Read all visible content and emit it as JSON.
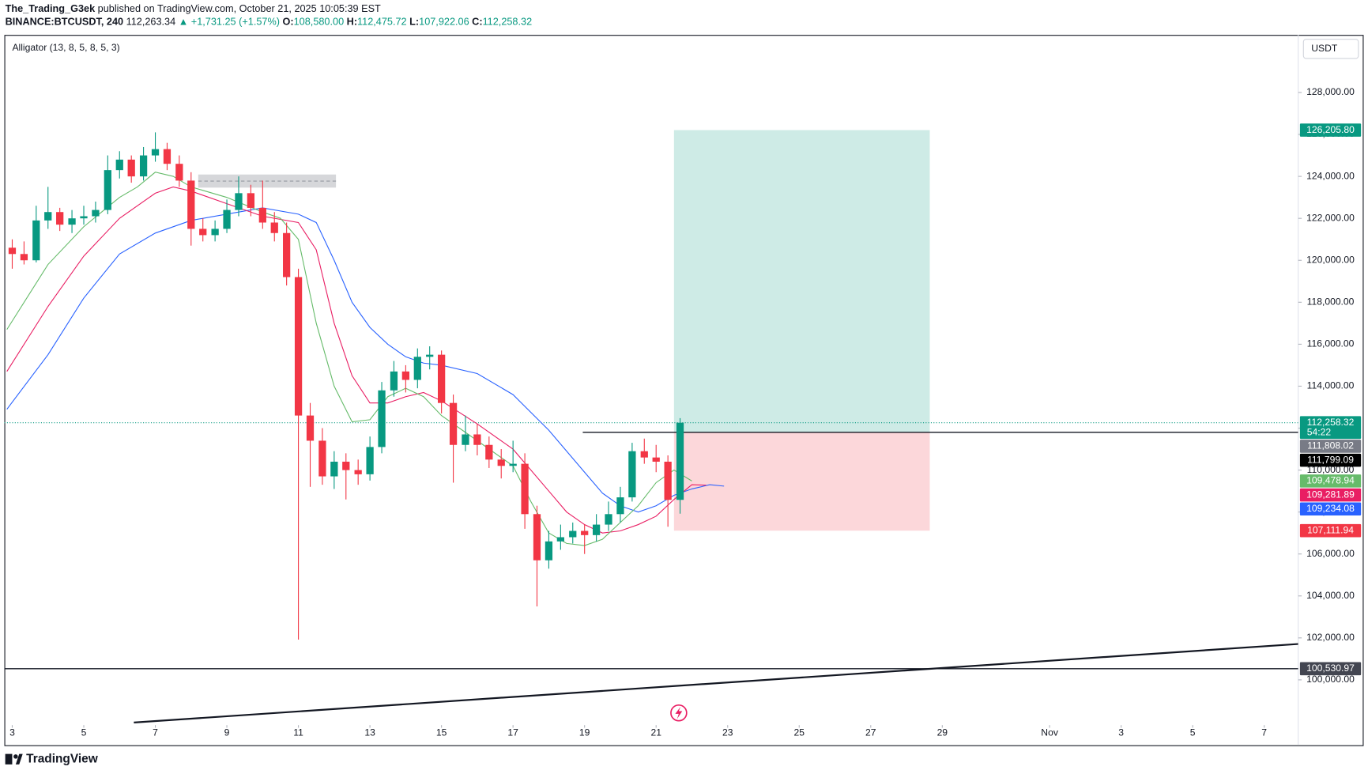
{
  "header": {
    "author": "The_Trading_G3ek",
    "published": "published on TradingView.com, October 21, 2025 10:05:39 EST",
    "symbol": "BINANCE:BTCUSDT, 240",
    "price": "112,263.34",
    "change": "▲ +1,731.25 (+1.57%)",
    "o_label": "O:",
    "o": "108,580.00",
    "h_label": "H:",
    "h": "112,475.72",
    "l_label": "L:",
    "l": "107,922.06",
    "c_label": "C:",
    "c": "112,258.32"
  },
  "footer": {
    "brand": "TradingView"
  },
  "chart_data": {
    "type": "candlestick",
    "indicator": "Alligator (13, 8, 5, 8, 5, 3)",
    "currency": "USDT",
    "up_color": "#089981",
    "down_color": "#f23645",
    "x": [
      3,
      3.33,
      3.67,
      4,
      4.33,
      4.67,
      5,
      5.33,
      5.67,
      6,
      6.33,
      6.67,
      7,
      7.33,
      7.67,
      8,
      8.33,
      8.67,
      9,
      9.33,
      9.67,
      10,
      10.33,
      10.67,
      11,
      11.33,
      11.67,
      12,
      12.33,
      12.67,
      13,
      13.33,
      13.67,
      14,
      14.33,
      14.67,
      15,
      15.33,
      15.67,
      16,
      16.33,
      16.67,
      17,
      17.33,
      17.67,
      18,
      18.33,
      18.67,
      19,
      19.33,
      19.67,
      20,
      20.33,
      20.67,
      21,
      21.33,
      21.67
    ],
    "candles": [
      [
        120600,
        121000,
        119600,
        120300
      ],
      [
        120300,
        120900,
        119800,
        120000
      ],
      [
        120000,
        122600,
        119900,
        121900
      ],
      [
        121900,
        123500,
        121500,
        122300
      ],
      [
        122300,
        122500,
        121400,
        121700
      ],
      [
        121700,
        122400,
        121300,
        122000
      ],
      [
        122000,
        122600,
        121700,
        122100
      ],
      [
        122100,
        122800,
        121800,
        122400
      ],
      [
        122400,
        125000,
        122200,
        124300
      ],
      [
        124300,
        125200,
        123900,
        124800
      ],
      [
        124800,
        125000,
        123700,
        124000
      ],
      [
        124000,
        125400,
        123800,
        125000
      ],
      [
        125000,
        126100,
        124700,
        125300
      ],
      [
        125300,
        125600,
        124300,
        124600
      ],
      [
        124600,
        125000,
        123500,
        123800
      ],
      [
        123800,
        124200,
        120700,
        121500
      ],
      [
        121500,
        122000,
        120900,
        121200
      ],
      [
        121200,
        121900,
        120900,
        121500
      ],
      [
        121500,
        122900,
        121300,
        122400
      ],
      [
        122400,
        124000,
        122100,
        123200
      ],
      [
        123200,
        123600,
        122100,
        122500
      ],
      [
        122500,
        123800,
        121500,
        121800
      ],
      [
        121800,
        122300,
        120900,
        121300
      ],
      [
        121300,
        121800,
        118800,
        119200
      ],
      [
        119200,
        119600,
        101920,
        112600
      ],
      [
        112600,
        113200,
        109200,
        111400
      ],
      [
        111400,
        112000,
        109300,
        109700
      ],
      [
        109700,
        110900,
        109100,
        110400
      ],
      [
        110400,
        110800,
        108600,
        110000
      ],
      [
        110000,
        110500,
        109300,
        109800
      ],
      [
        109800,
        111600,
        109500,
        111100
      ],
      [
        111100,
        114200,
        110800,
        113800
      ],
      [
        113800,
        115200,
        113500,
        114700
      ],
      [
        114700,
        115000,
        113700,
        114300
      ],
      [
        114300,
        115800,
        113900,
        115400
      ],
      [
        115400,
        115900,
        114800,
        115500
      ],
      [
        115500,
        115700,
        112700,
        113200
      ],
      [
        113200,
        113600,
        109400,
        111200
      ],
      [
        111200,
        112600,
        110900,
        111700
      ],
      [
        111700,
        112200,
        110700,
        111200
      ],
      [
        111200,
        111600,
        110100,
        110500
      ],
      [
        110500,
        111000,
        109600,
        110200
      ],
      [
        110200,
        111400,
        109900,
        110300
      ],
      [
        110300,
        110800,
        107200,
        107900
      ],
      [
        107900,
        108300,
        103500,
        105700
      ],
      [
        105700,
        107100,
        105300,
        106600
      ],
      [
        106600,
        107400,
        106200,
        106800
      ],
      [
        106800,
        107500,
        106500,
        107100
      ],
      [
        107100,
        107400,
        106000,
        106900
      ],
      [
        106900,
        107900,
        106600,
        107400
      ],
      [
        107400,
        108500,
        107100,
        107900
      ],
      [
        107900,
        109200,
        107500,
        108700
      ],
      [
        108700,
        111300,
        108500,
        110900
      ],
      [
        110900,
        111500,
        110300,
        110600
      ],
      [
        110600,
        111200,
        109900,
        110400
      ],
      [
        110400,
        110700,
        107300,
        108580
      ],
      [
        108580,
        112475.72,
        107922.06,
        112258.32
      ]
    ],
    "series": [
      {
        "color": "#2962ff",
        "last_label": "109,234.08",
        "x": [
          2.85,
          4,
          5,
          6,
          7,
          8,
          9,
          10,
          11,
          11.5,
          12,
          12.5,
          13,
          13.5,
          14,
          14.5,
          15,
          16,
          17,
          18,
          19,
          19.5,
          20,
          20.5,
          21,
          21.5,
          22,
          22.5,
          22.9
        ],
        "values": [
          112900,
          115500,
          118200,
          120300,
          121300,
          121900,
          122200,
          122500,
          122200,
          121800,
          120000,
          118000,
          116800,
          116000,
          115400,
          115100,
          115000,
          114600,
          113600,
          111900,
          109900,
          108900,
          108300,
          108000,
          108300,
          108800,
          109100,
          109300,
          109234.08
        ]
      },
      {
        "color": "#e91e63",
        "last_label": "109,281.89",
        "x": [
          2.85,
          4,
          5,
          6,
          7,
          7.5,
          8,
          9,
          10,
          11,
          11.5,
          12,
          12.5,
          13,
          13.5,
          14,
          14.5,
          15,
          16,
          17,
          18,
          18.5,
          19,
          19.5,
          20,
          20.5,
          21,
          21.5,
          22,
          22.4
        ],
        "values": [
          114700,
          117800,
          120200,
          122000,
          123200,
          123500,
          123300,
          122700,
          122100,
          121800,
          120500,
          117000,
          114500,
          113200,
          113200,
          113500,
          113700,
          113300,
          112200,
          111000,
          109000,
          108000,
          107400,
          107000,
          107100,
          107400,
          107800,
          108600,
          109300,
          109281.89
        ]
      },
      {
        "color": "#66bb6a",
        "last_label": "109,478.94",
        "x": [
          2.85,
          4,
          5,
          6,
          6.5,
          7,
          7.5,
          8,
          9,
          10,
          10.5,
          11,
          11.5,
          12,
          12.5,
          13,
          13.5,
          14,
          14.5,
          15,
          16,
          17,
          17.5,
          18,
          18.5,
          19,
          19.5,
          20,
          20.5,
          21,
          21.5,
          22
        ],
        "values": [
          116700,
          119800,
          121600,
          123000,
          123500,
          124200,
          124000,
          123500,
          123000,
          122300,
          122000,
          121000,
          117000,
          114000,
          112300,
          112400,
          113500,
          113900,
          113500,
          112600,
          111400,
          110200,
          108500,
          107000,
          106500,
          106400,
          106700,
          107500,
          108300,
          109400,
          110000,
          109478.94
        ]
      }
    ],
    "position": {
      "entry": 111799.09,
      "entry_label": "111,799.09",
      "target": 126205.8,
      "target_label": "126,205.80",
      "stop": 107111.94,
      "stop_label": "107,111.94",
      "x": [
        21.5,
        28.65
      ],
      "entry_line_x": [
        18.95,
        38.95
      ]
    },
    "zone": {
      "x": [
        8.2,
        12.05
      ],
      "y": [
        123465,
        124090
      ]
    },
    "trendline": {
      "x": [
        6.4,
        38.95
      ],
      "values": [
        97966,
        101710
      ]
    },
    "price_labels": [
      {
        "value": 112258.32,
        "label": "112,258.32",
        "sub": "54:22",
        "color": "#089981",
        "line": "dotted"
      },
      {
        "value": 111808.02,
        "label": "111,808.02",
        "color": "#787b86",
        "line": "none"
      },
      {
        "value": 100530.97,
        "label": "100,530.97",
        "color": "#434651",
        "line": "solid"
      }
    ],
    "xlim": [
      2.78,
      38.95
    ],
    "ylim": [
      97966,
      130745
    ],
    "xticks": [
      3,
      5,
      7,
      9,
      11,
      13,
      15,
      17,
      19,
      21,
      23,
      25,
      27,
      29,
      {
        "value": 32,
        "label": "Nov"
      },
      {
        "value": 34,
        "label": "3"
      },
      {
        "value": 36,
        "label": "5"
      },
      {
        "value": 38,
        "label": "7"
      }
    ],
    "yticks": [
      {
        "value": 100000,
        "label": "100,000.00"
      },
      {
        "value": 102000,
        "label": "102,000.00"
      },
      {
        "value": 104000,
        "label": "104,000.00"
      },
      {
        "value": 106000,
        "label": "106,000.00"
      },
      {
        "value": 108000,
        "label": "108,000.00"
      },
      {
        "value": 110000,
        "label": "110,000.00"
      },
      {
        "value": 112000,
        "label": "112,000.00"
      },
      {
        "value": 114000,
        "label": "114,000.00"
      },
      {
        "value": 116000,
        "label": "116,000.00"
      },
      {
        "value": 118000,
        "label": "118,000.00"
      },
      {
        "value": 120000,
        "label": "120,000.00"
      },
      {
        "value": 122000,
        "label": "122,000.00"
      },
      {
        "value": 124000,
        "label": "124,000.00"
      },
      {
        "value": 126000,
        "label": "126,000.00"
      },
      {
        "value": 128000,
        "label": "128,000.00"
      }
    ]
  }
}
